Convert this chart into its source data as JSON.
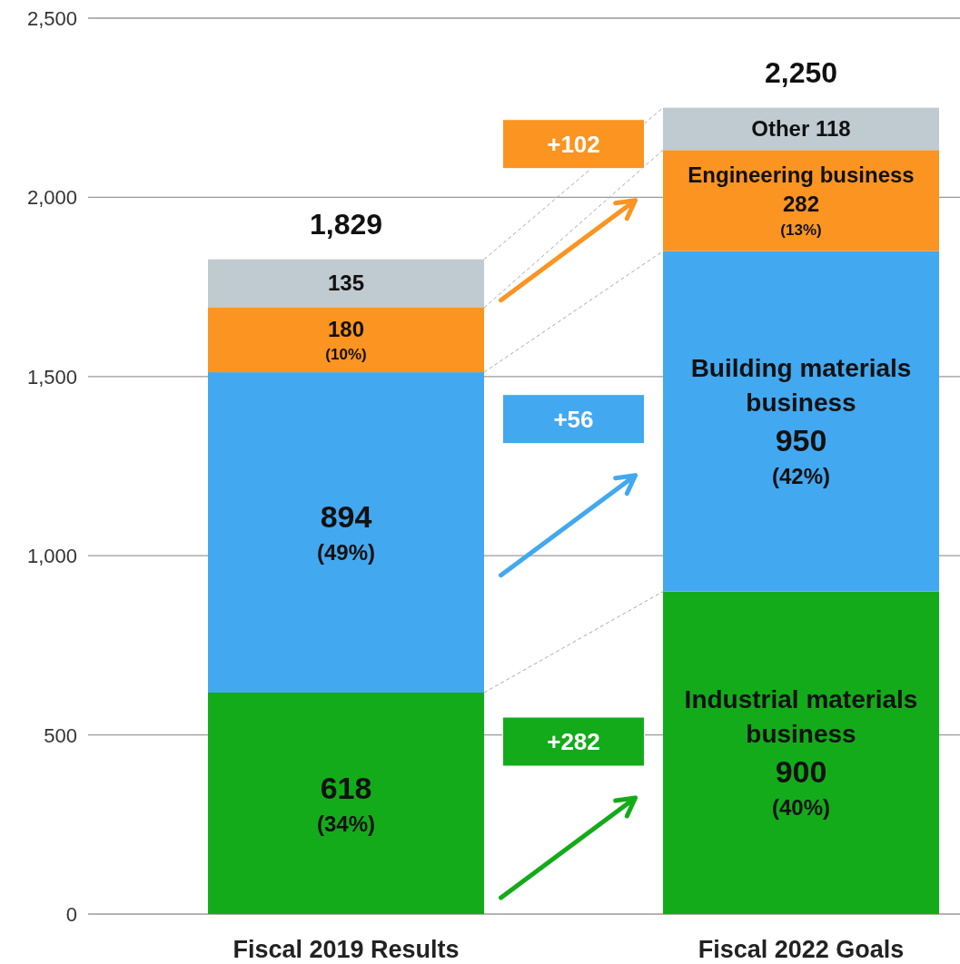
{
  "chart_data": {
    "type": "bar",
    "stacked": true,
    "categories": [
      "Fiscal 2019 Results",
      "Fiscal 2022 Goals"
    ],
    "series": [
      {
        "name": "Industrial materials business",
        "color": "#14ab1a",
        "values": [
          618,
          900
        ],
        "value_labels": [
          "618 (34%)",
          "900 (40%)"
        ]
      },
      {
        "name": "Building materials business",
        "color": "#42a8f0",
        "values": [
          894,
          950
        ],
        "value_labels": [
          "894 (49%)",
          "950 (42%)"
        ]
      },
      {
        "name": "Engineering business",
        "color": "#fb9420",
        "values": [
          180,
          282
        ],
        "value_labels": [
          "180 (10%)",
          "282 (13%)"
        ]
      },
      {
        "name": "Other",
        "color": "#bfcbd0",
        "values": [
          135,
          118
        ],
        "value_labels": [
          "135",
          "118"
        ]
      }
    ],
    "totals": [
      "1,829",
      "2,250"
    ],
    "annotations": [
      "+282",
      "+56",
      "+102"
    ],
    "ylim": [
      0,
      2500
    ],
    "yticks": [
      0,
      500,
      {
        "value": 1000,
        "label": "1,000"
      },
      {
        "value": 1500,
        "label": "1,500"
      },
      {
        "value": 2000,
        "label": "2,000"
      },
      {
        "value": 2500,
        "label": "2,500"
      }
    ],
    "grid": "y"
  }
}
